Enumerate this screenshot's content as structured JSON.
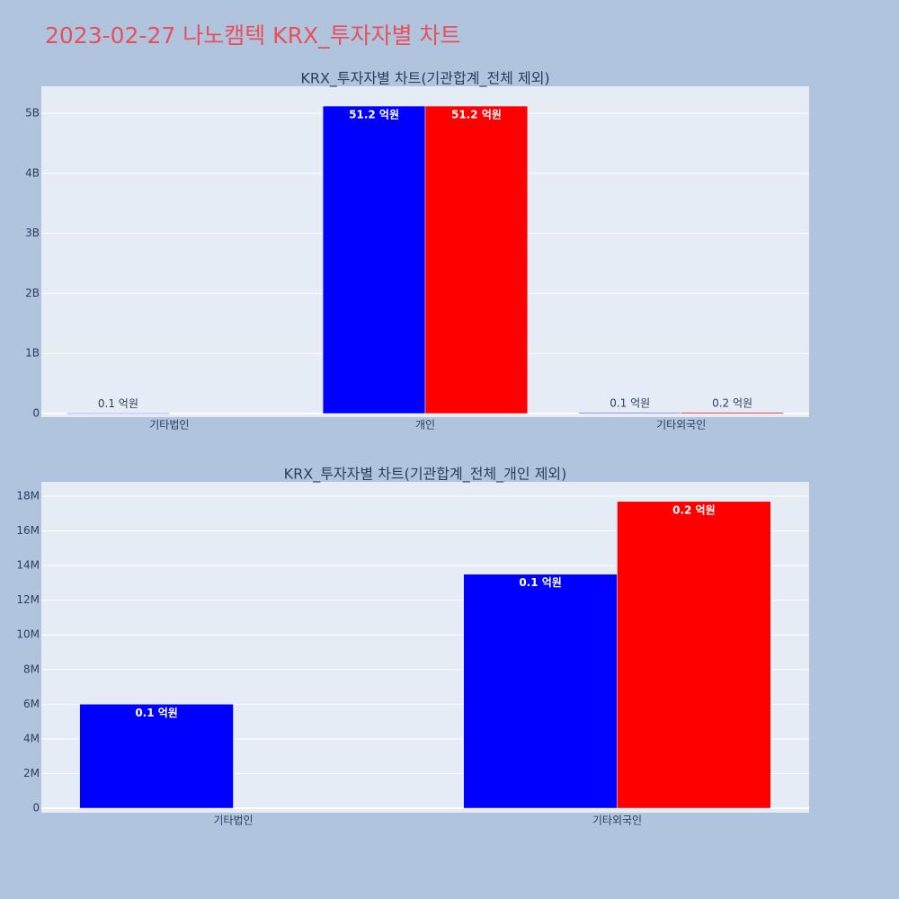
{
  "title": "2023-02-27 나노캠텍 KRX_투자자별 차트",
  "chart_data": [
    {
      "type": "bar",
      "title": "KRX_투자자별 차트(기관합계_전체 제외)",
      "categories": [
        "기타법인",
        "개인",
        "기타외국인"
      ],
      "series": [
        {
          "color": "#0000ff",
          "values": [
            6000000,
            5120000000,
            13500000
          ],
          "value_labels": [
            "0.1 억원",
            "51.2 억원",
            "0.1 억원"
          ]
        },
        {
          "color": "#ff0000",
          "values": [
            null,
            5120000000,
            17700000
          ],
          "value_labels": [
            null,
            "51.2 억원",
            "0.2 억원"
          ]
        }
      ],
      "ylim": [
        -60000000,
        5450000000
      ],
      "yticks": [
        0,
        {
          "value": 1000000000,
          "label": "1B"
        },
        {
          "value": 2000000000,
          "label": "2B"
        },
        {
          "value": 3000000000,
          "label": "3B"
        },
        {
          "value": 4000000000,
          "label": "4B"
        },
        {
          "value": 5000000000,
          "label": "5B"
        }
      ],
      "grid": true
    },
    {
      "type": "bar",
      "title": "KRX_투자자별 차트(기관합계_전체_개인 제외)",
      "categories": [
        "기타법인",
        "기타외국인"
      ],
      "series": [
        {
          "color": "#0000ff",
          "values": [
            6000000,
            13500000
          ],
          "value_labels": [
            "0.1 억원",
            "0.1 억원"
          ]
        },
        {
          "color": "#ff0000",
          "values": [
            null,
            17700000
          ],
          "value_labels": [
            null,
            "0.2 억원"
          ]
        }
      ],
      "ylim": [
        -260000,
        18830000
      ],
      "yticks": [
        0,
        {
          "value": 2000000,
          "label": "2M"
        },
        {
          "value": 4000000,
          "label": "4M"
        },
        {
          "value": 6000000,
          "label": "6M"
        },
        {
          "value": 8000000,
          "label": "8M"
        },
        {
          "value": 10000000,
          "label": "10M"
        },
        {
          "value": 12000000,
          "label": "12M"
        },
        {
          "value": 14000000,
          "label": "14M"
        },
        {
          "value": 16000000,
          "label": "16M"
        },
        {
          "value": 18000000,
          "label": "18M"
        }
      ],
      "grid": true
    }
  ]
}
